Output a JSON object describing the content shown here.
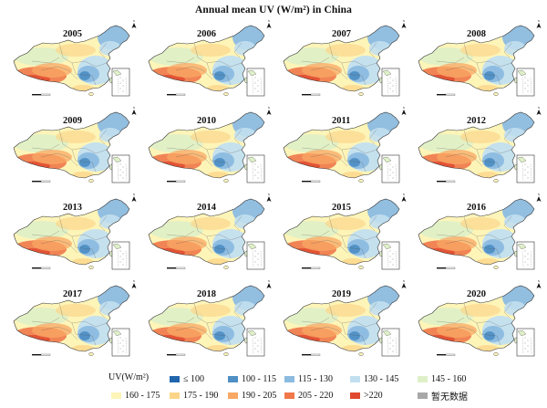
{
  "title": "Annual mean UV (W/m²) in China",
  "years": [
    "2005",
    "2006",
    "2007",
    "2008",
    "2009",
    "2010",
    "2011",
    "2012",
    "2013",
    "2014",
    "2015",
    "2016",
    "2017",
    "2018",
    "2019",
    "2020"
  ],
  "legend": {
    "title": "UV(W/m²)",
    "items": [
      {
        "label": "≤ 100",
        "color": "#2166ac"
      },
      {
        "label": "100 - 115",
        "color": "#4f8fc4"
      },
      {
        "label": "115 - 130",
        "color": "#8cbbe0"
      },
      {
        "label": "130 - 145",
        "color": "#c2dff0"
      },
      {
        "label": "145 - 160",
        "color": "#dff0c8"
      },
      {
        "label": "160 - 175",
        "color": "#fdf4b8"
      },
      {
        "label": "175 - 190",
        "color": "#fbd68a"
      },
      {
        "label": "190 - 205",
        "color": "#f8a864"
      },
      {
        "label": "205 - 220",
        "color": "#f0784a"
      },
      {
        "label": ">220",
        "color": "#e04a30"
      },
      {
        "label": "暂无数据",
        "color": "#a8a8a8"
      }
    ]
  },
  "map_icons": [
    "north-arrow-icon",
    "scale-bar",
    "south-china-sea-inset"
  ]
}
